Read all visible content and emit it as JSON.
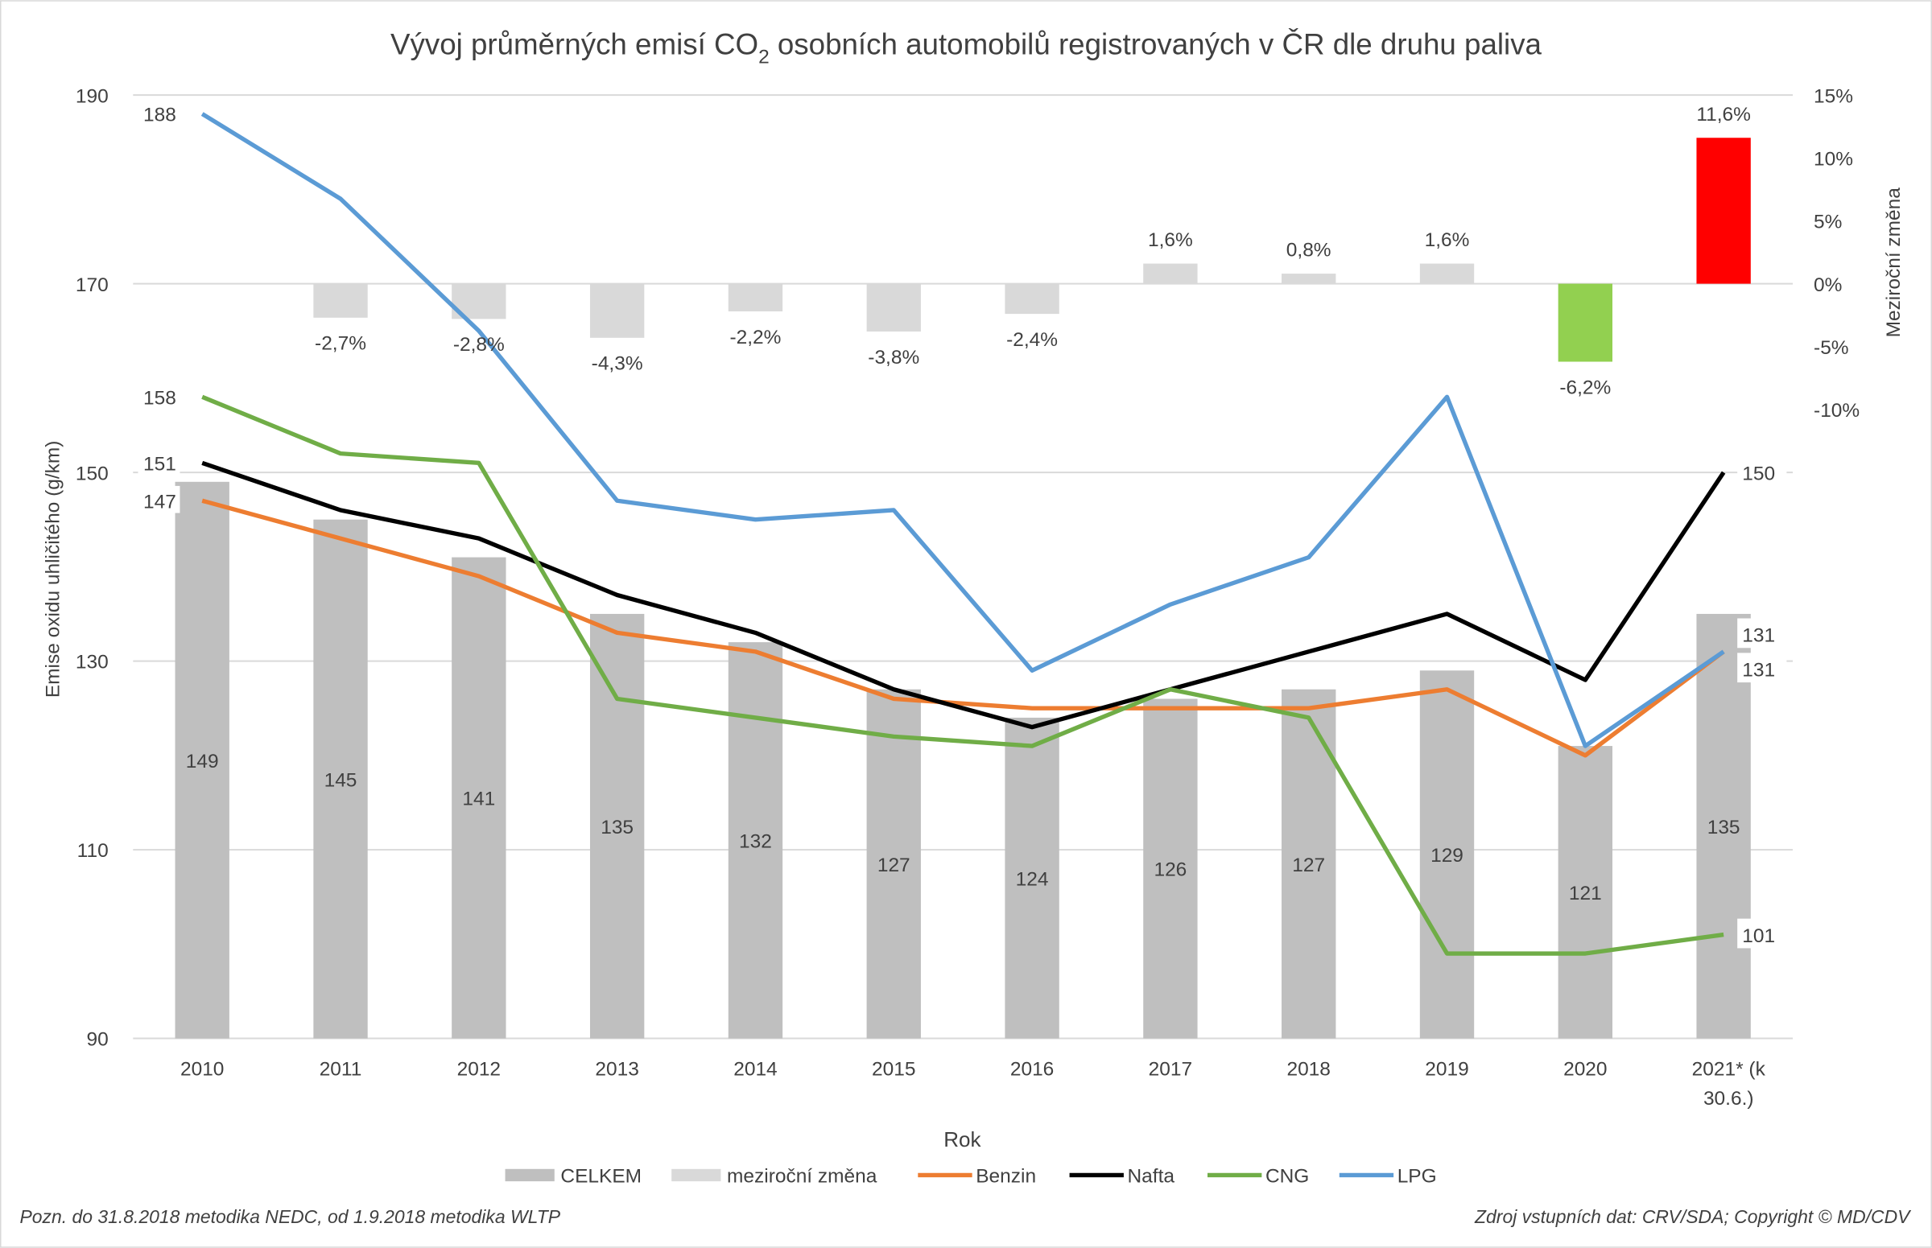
{
  "chart_data": {
    "type": "bar+line",
    "title_main": "Vývoj průměrných emisí CO",
    "title_sub": "2",
    "title_rest": " osobních automobilů registrovaných v ČR dle druhu paliva",
    "xlabel": "Rok",
    "ylabel": "Emise oxidu uhličitého (g/km)",
    "ylabel_right": "Meziroční změna",
    "categories": [
      "2010",
      "2011",
      "2012",
      "2013",
      "2014",
      "2015",
      "2016",
      "2017",
      "2018",
      "2019",
      "2020",
      "2021* (k 30.6.)"
    ],
    "category_lines": [
      [
        "2010"
      ],
      [
        "2011"
      ],
      [
        "2012"
      ],
      [
        "2013"
      ],
      [
        "2014"
      ],
      [
        "2015"
      ],
      [
        "2016"
      ],
      [
        "2017"
      ],
      [
        "2018"
      ],
      [
        "2019"
      ],
      [
        "2020"
      ],
      [
        "2021* (k",
        "30.6.)"
      ]
    ],
    "ylim": [
      90,
      190
    ],
    "yticks": [
      90,
      110,
      130,
      150,
      170,
      190
    ],
    "ylim_right_ticks": [
      "15%",
      "10%",
      "5%",
      "0%",
      "-5%",
      "-10%"
    ],
    "yticks_right": [
      15,
      10,
      5,
      0,
      -5,
      -10
    ],
    "grid": true,
    "legend_position": "bottom",
    "bars": {
      "name": "CELKEM",
      "color": "#bfbfbf",
      "values": [
        149,
        145,
        141,
        135,
        132,
        127,
        124,
        126,
        127,
        129,
        121,
        135
      ],
      "labels": [
        "149",
        "145",
        "141",
        "135",
        "132",
        "127",
        "124",
        "126",
        "127",
        "129",
        "121",
        "135"
      ]
    },
    "change": {
      "name": "meziroční změna",
      "color": "#d9d9d9",
      "values": [
        null,
        -2.7,
        -2.8,
        -4.3,
        -2.2,
        -3.8,
        -2.4,
        1.6,
        0.8,
        1.6,
        -6.2,
        11.6
      ],
      "labels": [
        "",
        "-2,7%",
        "-2,8%",
        "-4,3%",
        "-2,2%",
        "-3,8%",
        "-2,4%",
        "1,6%",
        "0,8%",
        "1,6%",
        "-6,2%",
        "11,6%"
      ],
      "highlight_colors": {
        "2020": "#92d050",
        "2021* (k 30.6.)": "#ff0000"
      }
    },
    "series": [
      {
        "name": "Benzin",
        "color": "#ed7d31",
        "values": [
          147,
          143,
          139,
          133,
          131,
          126,
          125,
          125,
          125,
          127,
          120,
          131
        ],
        "start_label": "147",
        "end_label": "131"
      },
      {
        "name": "Nafta",
        "color": "#000000",
        "values": [
          151,
          146,
          143,
          137,
          133,
          127,
          123,
          127,
          131,
          135,
          128,
          150
        ],
        "start_label": "151",
        "end_label": "150"
      },
      {
        "name": "CNG",
        "color": "#70ad47",
        "values": [
          158,
          152,
          151,
          126,
          124,
          122,
          121,
          127,
          124,
          99,
          99,
          101
        ],
        "start_label": "158",
        "end_label": "101"
      },
      {
        "name": "LPG",
        "color": "#5b9bd5",
        "values": [
          188,
          179,
          165,
          147,
          145,
          146,
          129,
          136,
          141,
          158,
          121,
          131
        ],
        "start_label": "188",
        "end_label": "131"
      }
    ]
  },
  "footer": {
    "note": "Pozn. do 31.8.2018 metodika NEDC, od 1.9.2018 metodika WLTP",
    "source": "Zdroj vstupních dat: CRV/SDA; Copyright © MD/CDV"
  }
}
